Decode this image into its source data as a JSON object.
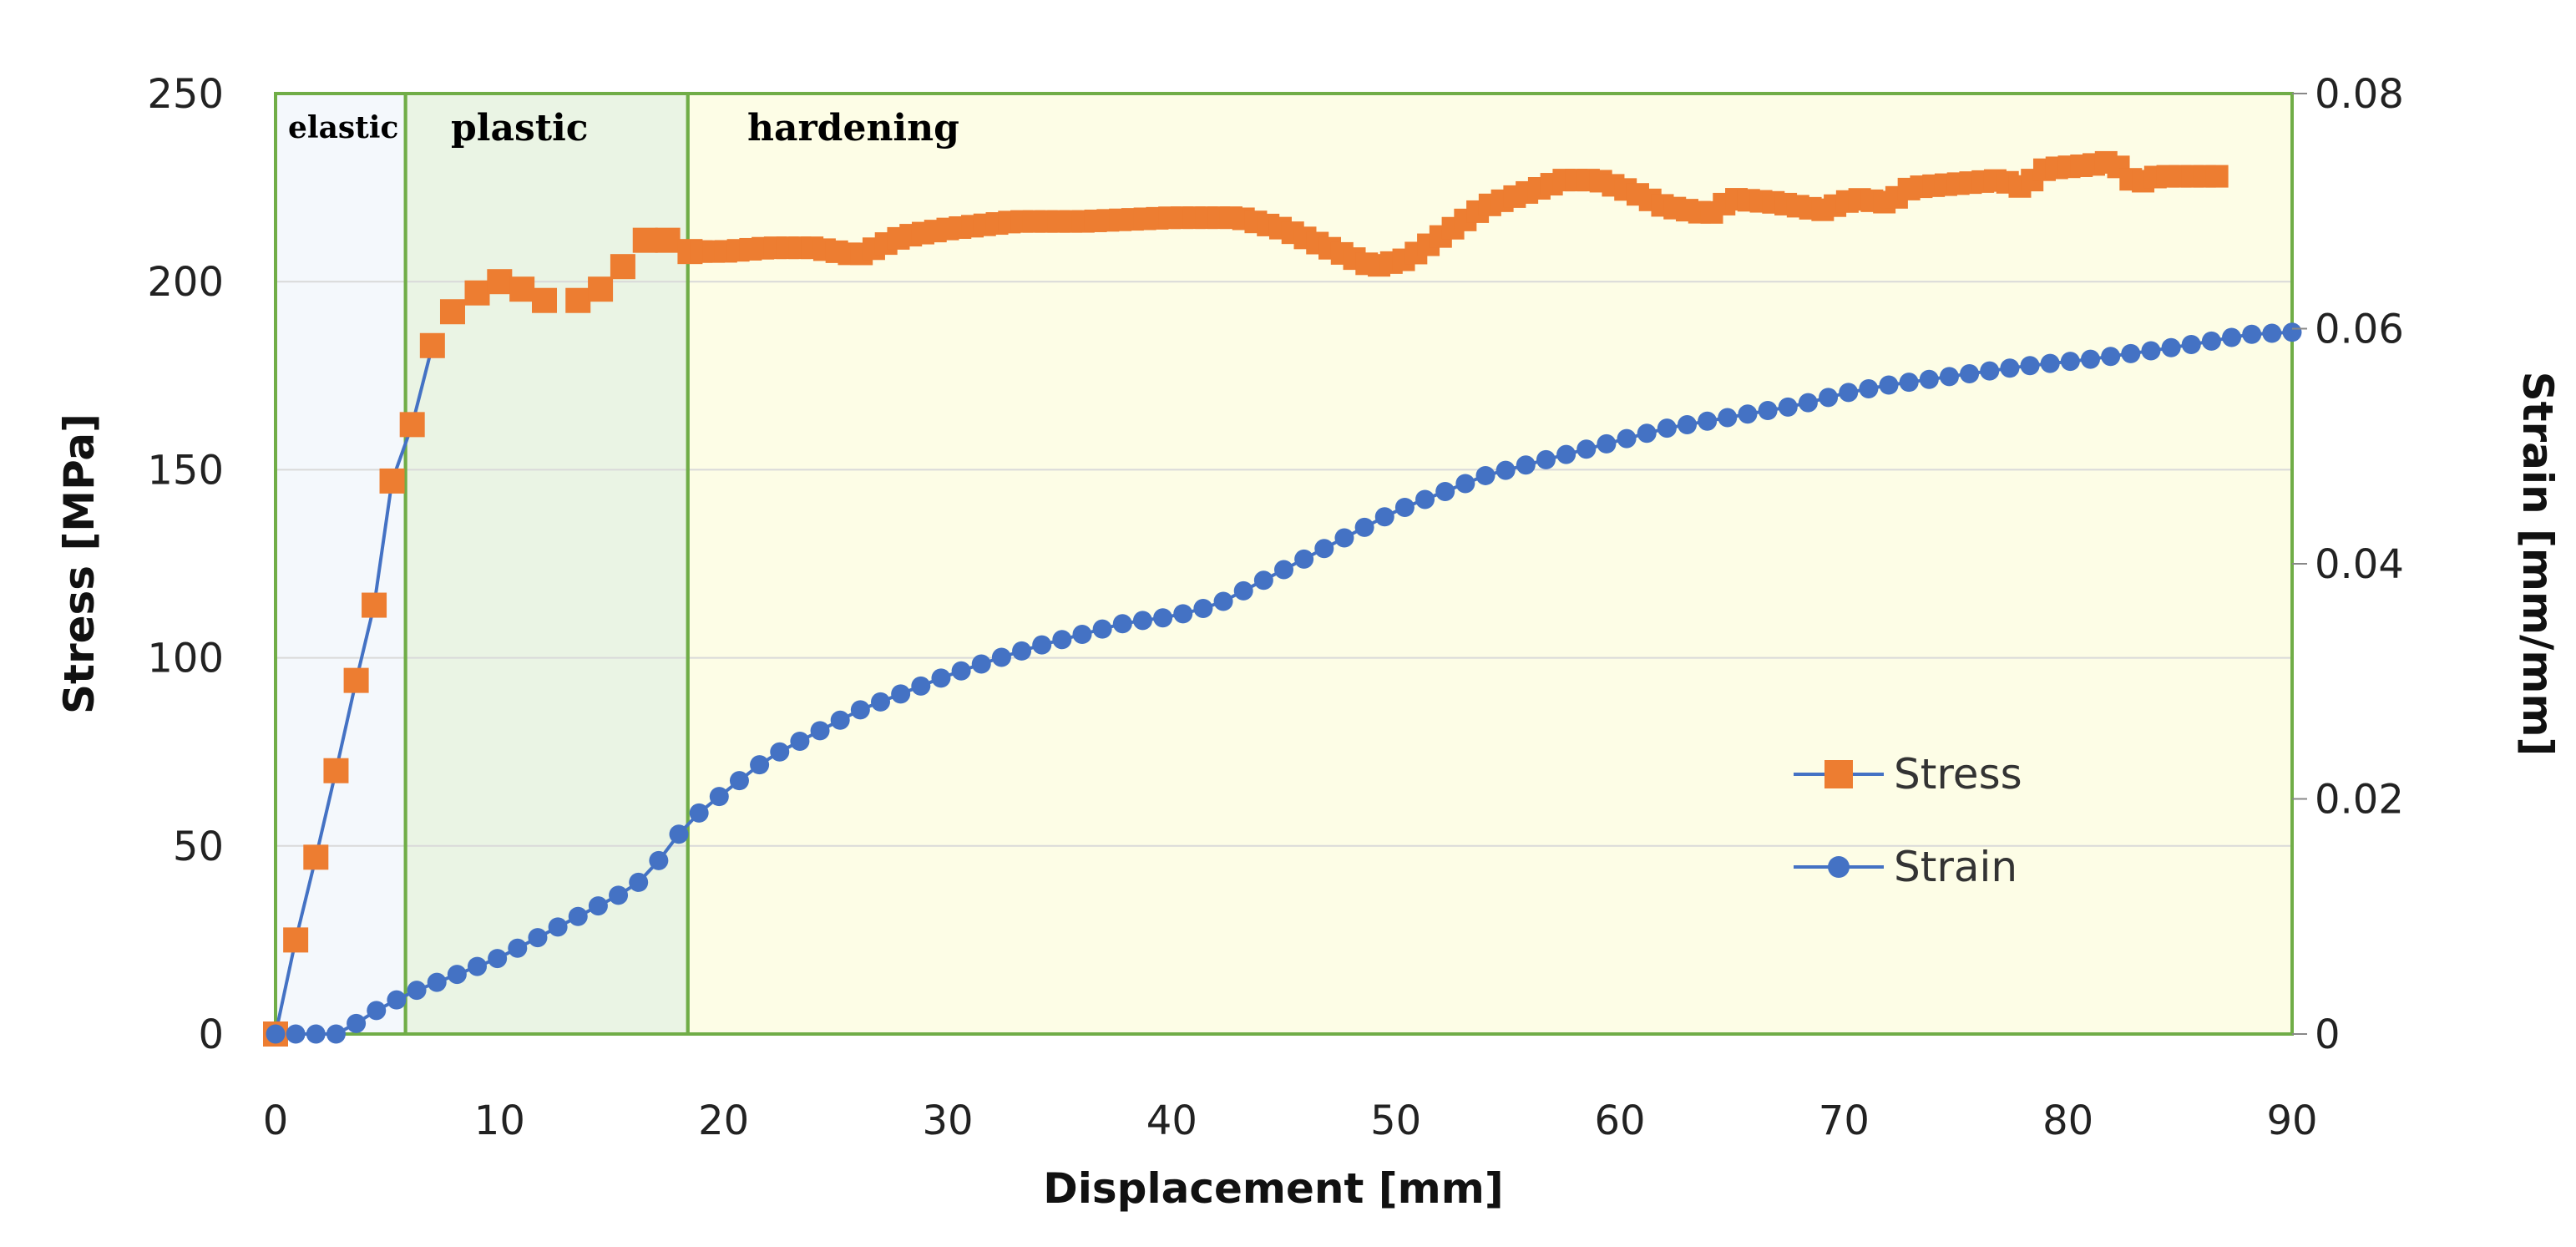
{
  "chart_data": {
    "type": "line",
    "title": "",
    "xlabel": "Displacement [mm]",
    "ylabel": "Stress [MPa]",
    "y2label": "Strain [mm/mm]",
    "xlim": [
      0,
      90
    ],
    "ylim": [
      0,
      250
    ],
    "y2lim": [
      0,
      0.08
    ],
    "x_ticks": [
      "0",
      "10",
      "20",
      "30",
      "40",
      "50",
      "60",
      "70",
      "80",
      "90"
    ],
    "y_ticks": [
      "0",
      "50",
      "100",
      "150",
      "200",
      "250"
    ],
    "y2_ticks": [
      "0",
      "0.02",
      "0.04",
      "0.06",
      "0.08"
    ],
    "grid": true,
    "legend_position": "lower-right",
    "regions": [
      {
        "label": "elastic",
        "x_start": 0,
        "x_end": 5.8,
        "color": "#f4f8fc"
      },
      {
        "label": "plastic",
        "x_start": 5.8,
        "x_end": 18.4,
        "color": "#eaf4e4"
      },
      {
        "label": "hardening",
        "x_start": 18.4,
        "x_end": 90,
        "color": "#fdfde6"
      }
    ],
    "series": [
      {
        "name": "Stress",
        "axis": "left",
        "marker": "square",
        "marker_color": "#ED7D31",
        "line_color": "#4472C4",
        "knots": [
          [
            0,
            0
          ],
          [
            0.9,
            25
          ],
          [
            1.8,
            47
          ],
          [
            2.7,
            70
          ],
          [
            3.6,
            94
          ],
          [
            4.4,
            114
          ],
          [
            5.2,
            147
          ],
          [
            6.1,
            162
          ],
          [
            7.0,
            183
          ],
          [
            7.9,
            192
          ],
          [
            9.0,
            197
          ],
          [
            10.0,
            200
          ],
          [
            11.0,
            198
          ],
          [
            12.0,
            195
          ],
          [
            13.5,
            195
          ],
          [
            14.5,
            198
          ],
          [
            15.5,
            204
          ],
          [
            16.5,
            211
          ],
          [
            17.5,
            211
          ],
          [
            18.5,
            208
          ],
          [
            20.0,
            208
          ],
          [
            22.0,
            209
          ],
          [
            24.0,
            209
          ],
          [
            26.0,
            207
          ],
          [
            28.0,
            212
          ],
          [
            30.0,
            214
          ],
          [
            33.0,
            216
          ],
          [
            36.0,
            216
          ],
          [
            40.0,
            217
          ],
          [
            43.0,
            217
          ],
          [
            45.0,
            214
          ],
          [
            47.0,
            209
          ],
          [
            49.0,
            204
          ],
          [
            50.5,
            206
          ],
          [
            52.0,
            212
          ],
          [
            53.0,
            216
          ],
          [
            54.0,
            220
          ],
          [
            56.0,
            224
          ],
          [
            57.5,
            227
          ],
          [
            59.0,
            227
          ],
          [
            60.5,
            224
          ],
          [
            62.0,
            220
          ],
          [
            64.0,
            218
          ],
          [
            65.0,
            222
          ],
          [
            67.0,
            221
          ],
          [
            69.0,
            219
          ],
          [
            70.5,
            222
          ],
          [
            72.0,
            221
          ],
          [
            73.0,
            225
          ],
          [
            75.0,
            226
          ],
          [
            77.0,
            227
          ],
          [
            78.0,
            225
          ],
          [
            79.0,
            230
          ],
          [
            81.0,
            231
          ],
          [
            82.0,
            232
          ],
          [
            83.0,
            226
          ],
          [
            84.0,
            228
          ],
          [
            86.0,
            228
          ],
          [
            87.0,
            228
          ]
        ]
      },
      {
        "name": "Strain",
        "axis": "right",
        "marker": "circle",
        "marker_color": "#4472C4",
        "line_color": "#4472C4",
        "knots": [
          [
            0,
            0
          ],
          [
            1,
            0
          ],
          [
            2,
            0
          ],
          [
            3,
            0
          ],
          [
            4,
            0.0015
          ],
          [
            5,
            0.0025
          ],
          [
            6,
            0.0035
          ],
          [
            8,
            0.005
          ],
          [
            10,
            0.0065
          ],
          [
            12,
            0.0085
          ],
          [
            14,
            0.0105
          ],
          [
            15,
            0.0115
          ],
          [
            16,
            0.0125
          ],
          [
            17,
            0.0145
          ],
          [
            18,
            0.017
          ],
          [
            19,
            0.019
          ],
          [
            20,
            0.0205
          ],
          [
            22,
            0.0235
          ],
          [
            24,
            0.0255
          ],
          [
            26,
            0.0275
          ],
          [
            28,
            0.029
          ],
          [
            30,
            0.0305
          ],
          [
            32,
            0.0318
          ],
          [
            34,
            0.033
          ],
          [
            36,
            0.034
          ],
          [
            38,
            0.035
          ],
          [
            40,
            0.0355
          ],
          [
            42,
            0.0365
          ],
          [
            44,
            0.0385
          ],
          [
            46,
            0.0405
          ],
          [
            48,
            0.0425
          ],
          [
            50,
            0.0445
          ],
          [
            52,
            0.046
          ],
          [
            54,
            0.0475
          ],
          [
            56,
            0.0485
          ],
          [
            58,
            0.0495
          ],
          [
            60,
            0.0505
          ],
          [
            62,
            0.0515
          ],
          [
            65,
            0.0525
          ],
          [
            68,
            0.0535
          ],
          [
            70,
            0.0545
          ],
          [
            72,
            0.0552
          ],
          [
            75,
            0.056
          ],
          [
            78,
            0.0568
          ],
          [
            81,
            0.0574
          ],
          [
            84,
            0.0582
          ],
          [
            86,
            0.0588
          ],
          [
            88,
            0.0595
          ],
          [
            90,
            0.0597
          ]
        ]
      }
    ]
  },
  "colors": {
    "stress_marker": "#ED7D31",
    "strain_marker": "#4472C4",
    "line": "#4472C4",
    "frame": "#70AD47",
    "grid": "#d9d9d9"
  }
}
